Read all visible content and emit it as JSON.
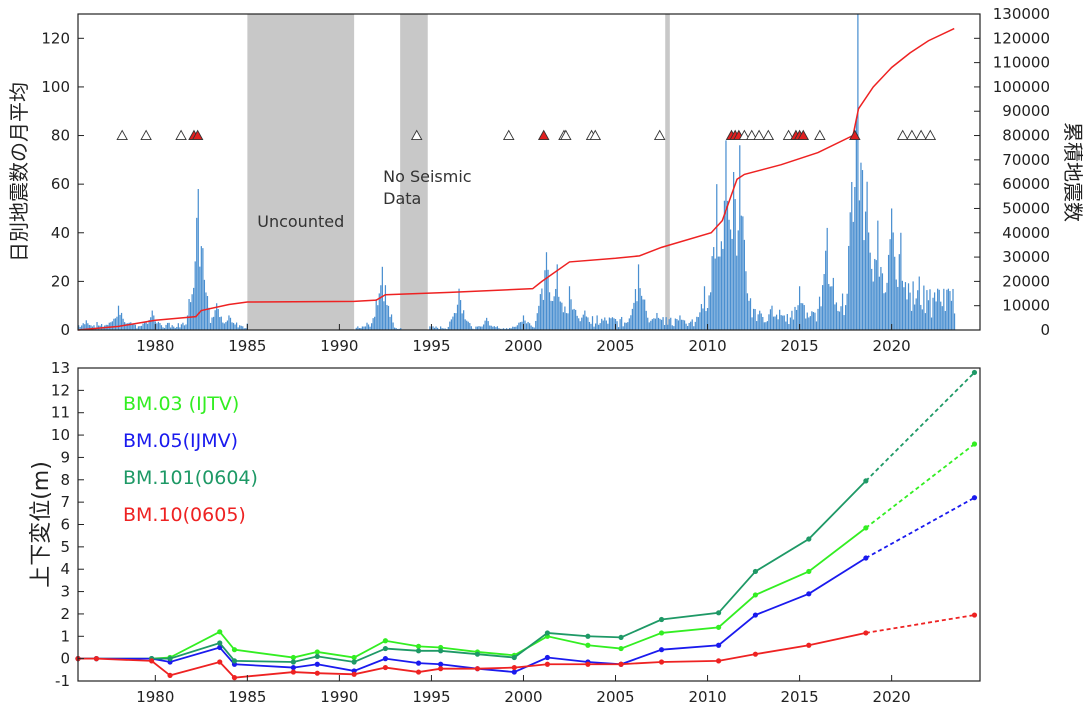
{
  "chart_data": [
    {
      "type": "bar",
      "ylabel": "日別地震数の月平均",
      "ylabel_right": "累積地震数",
      "xlim": [
        1975.8,
        2024.8
      ],
      "ylim": [
        0,
        130
      ],
      "ylim_right": [
        0,
        130000
      ],
      "x_ticks": [
        1980,
        1985,
        1990,
        1995,
        2000,
        2005,
        2010,
        2015,
        2020
      ],
      "y_ticks": [
        0,
        20,
        40,
        60,
        80,
        100,
        120
      ],
      "y_ticks_right": [
        0,
        10000,
        20000,
        30000,
        40000,
        50000,
        60000,
        70000,
        80000,
        90000,
        100000,
        110000,
        120000,
        130000
      ],
      "shaded_periods": [
        {
          "start": 1985.0,
          "end": 1990.8,
          "label": "Uncounted"
        },
        {
          "start": 1993.3,
          "end": 1994.8,
          "label_lines": [
            "No Seismic",
            "Data"
          ]
        },
        {
          "start": 2007.7,
          "end": 2007.95,
          "label_lines": []
        }
      ],
      "monthly_daily_average_peaks": [
        {
          "x": 1976.2,
          "y": 4
        },
        {
          "x": 1977.5,
          "y": 3
        },
        {
          "x": 1978.0,
          "y": 10
        },
        {
          "x": 1979.8,
          "y": 8
        },
        {
          "x": 1981.5,
          "y": 3
        },
        {
          "x": 1982.3,
          "y": 58
        },
        {
          "x": 1983.3,
          "y": 11
        },
        {
          "x": 1984.0,
          "y": 6
        },
        {
          "x": 1991.5,
          "y": 3
        },
        {
          "x": 1992.3,
          "y": 26
        },
        {
          "x": 1996.5,
          "y": 17
        },
        {
          "x": 1998.0,
          "y": 5
        },
        {
          "x": 2000.0,
          "y": 6
        },
        {
          "x": 2001.2,
          "y": 32
        },
        {
          "x": 2001.8,
          "y": 27
        },
        {
          "x": 2002.5,
          "y": 18
        },
        {
          "x": 2003.3,
          "y": 8
        },
        {
          "x": 2006.2,
          "y": 27
        },
        {
          "x": 2007.2,
          "y": 7
        },
        {
          "x": 2008.5,
          "y": 6
        },
        {
          "x": 2009.8,
          "y": 18
        },
        {
          "x": 2010.5,
          "y": 60
        },
        {
          "x": 2011.0,
          "y": 78
        },
        {
          "x": 2011.4,
          "y": 65
        },
        {
          "x": 2011.7,
          "y": 76
        },
        {
          "x": 2012.2,
          "y": 12
        },
        {
          "x": 2013.5,
          "y": 10
        },
        {
          "x": 2015.0,
          "y": 18
        },
        {
          "x": 2016.5,
          "y": 42
        },
        {
          "x": 2017.3,
          "y": 15
        },
        {
          "x": 2018.1,
          "y": 130
        },
        {
          "x": 2018.6,
          "y": 61
        },
        {
          "x": 2019.2,
          "y": 45
        },
        {
          "x": 2020.0,
          "y": 50
        },
        {
          "x": 2020.5,
          "y": 40
        },
        {
          "x": 2021.5,
          "y": 22
        },
        {
          "x": 2022.5,
          "y": 17
        },
        {
          "x": 2023.2,
          "y": 12
        }
      ],
      "cumulative_count": [
        {
          "x": 1975.8,
          "y": 0
        },
        {
          "x": 1978,
          "y": 1500
        },
        {
          "x": 1980,
          "y": 4000
        },
        {
          "x": 1982.2,
          "y": 5500
        },
        {
          "x": 1982.5,
          "y": 8000
        },
        {
          "x": 1984,
          "y": 10500
        },
        {
          "x": 1985,
          "y": 11500
        },
        {
          "x": 1990.8,
          "y": 11800
        },
        {
          "x": 1992.0,
          "y": 12300
        },
        {
          "x": 1992.5,
          "y": 14500
        },
        {
          "x": 1996,
          "y": 15500
        },
        {
          "x": 2000.5,
          "y": 17000
        },
        {
          "x": 2001.0,
          "y": 20000
        },
        {
          "x": 2002.5,
          "y": 28000
        },
        {
          "x": 2005,
          "y": 29500
        },
        {
          "x": 2006.3,
          "y": 30500
        },
        {
          "x": 2007.5,
          "y": 34000
        },
        {
          "x": 2010.2,
          "y": 40000
        },
        {
          "x": 2010.8,
          "y": 45000
        },
        {
          "x": 2011.6,
          "y": 62000
        },
        {
          "x": 2012,
          "y": 64000
        },
        {
          "x": 2014,
          "y": 68000
        },
        {
          "x": 2016,
          "y": 73000
        },
        {
          "x": 2017.9,
          "y": 80000
        },
        {
          "x": 2018.2,
          "y": 91000
        },
        {
          "x": 2019,
          "y": 100000
        },
        {
          "x": 2020,
          "y": 108000
        },
        {
          "x": 2021,
          "y": 114000
        },
        {
          "x": 2022,
          "y": 119000
        },
        {
          "x": 2023.4,
          "y": 124000
        }
      ],
      "eruption_markers": [
        {
          "x": 1978.2,
          "type": "open"
        },
        {
          "x": 1979.5,
          "type": "open"
        },
        {
          "x": 1981.4,
          "type": "open"
        },
        {
          "x": 1982.1,
          "type": "filled"
        },
        {
          "x": 1982.3,
          "type": "filled"
        },
        {
          "x": 1994.2,
          "type": "open"
        },
        {
          "x": 1999.2,
          "type": "open"
        },
        {
          "x": 2001.1,
          "type": "filled"
        },
        {
          "x": 2002.2,
          "type": "open"
        },
        {
          "x": 2002.3,
          "type": "open"
        },
        {
          "x": 2003.7,
          "type": "open"
        },
        {
          "x": 2003.9,
          "type": "open"
        },
        {
          "x": 2007.4,
          "type": "open"
        },
        {
          "x": 2011.3,
          "type": "filled"
        },
        {
          "x": 2011.5,
          "type": "filled"
        },
        {
          "x": 2011.7,
          "type": "filled"
        },
        {
          "x": 2012.0,
          "type": "open"
        },
        {
          "x": 2012.4,
          "type": "open"
        },
        {
          "x": 2012.8,
          "type": "open"
        },
        {
          "x": 2013.3,
          "type": "open"
        },
        {
          "x": 2014.4,
          "type": "open"
        },
        {
          "x": 2014.8,
          "type": "filled"
        },
        {
          "x": 2015.0,
          "type": "filled"
        },
        {
          "x": 2015.2,
          "type": "filled"
        },
        {
          "x": 2016.1,
          "type": "open"
        },
        {
          "x": 2018.0,
          "type": "filled"
        },
        {
          "x": 2020.6,
          "type": "open"
        },
        {
          "x": 2021.1,
          "type": "open"
        },
        {
          "x": 2021.6,
          "type": "open"
        },
        {
          "x": 2022.1,
          "type": "open"
        }
      ],
      "marker_level": 80
    },
    {
      "type": "line",
      "ylabel": "上下変位(m)",
      "xlim": [
        1975.8,
        2024.8
      ],
      "ylim": [
        -1,
        13
      ],
      "x_ticks": [
        1980,
        1985,
        1990,
        1995,
        2000,
        2005,
        2010,
        2015,
        2020
      ],
      "y_ticks": [
        -1,
        0,
        1,
        2,
        3,
        4,
        5,
        6,
        7,
        8,
        9,
        10,
        11,
        12,
        13
      ],
      "series": [
        {
          "name": "BM.03 (IJTV)",
          "color": "#33ee22",
          "x": [
            1975.8,
            1976.8,
            1979.8,
            1980.8,
            1983.5,
            1984.3,
            1987.5,
            1988.8,
            1990.8,
            1992.5,
            1994.3,
            1995.5,
            1997.5,
            1999.5,
            2001.3,
            2003.5,
            2005.3,
            2007.5,
            2010.6,
            2012.6,
            2015.5,
            2018.6
          ],
          "y": [
            0,
            0,
            0,
            0.05,
            1.2,
            0.4,
            0.05,
            0.3,
            0.05,
            0.8,
            0.55,
            0.5,
            0.3,
            0.15,
            1.0,
            0.6,
            0.45,
            1.15,
            1.4,
            2.85,
            3.9,
            5.85
          ],
          "projection": {
            "x": [
              2018.6,
              2024.5
            ],
            "y": [
              5.85,
              9.6
            ]
          }
        },
        {
          "name": "BM.05(IJMV)",
          "color": "#1a1aee",
          "x": [
            1975.8,
            1976.8,
            1979.8,
            1980.8,
            1983.5,
            1984.3,
            1987.5,
            1988.8,
            1990.8,
            1992.5,
            1994.3,
            1995.5,
            1997.5,
            1999.5,
            2001.3,
            2003.5,
            2005.3,
            2007.5,
            2010.6,
            2012.6,
            2015.5,
            2018.6
          ],
          "y": [
            0,
            0,
            0,
            -0.15,
            0.5,
            -0.25,
            -0.4,
            -0.25,
            -0.55,
            0.0,
            -0.2,
            -0.25,
            -0.45,
            -0.6,
            0.05,
            -0.15,
            -0.25,
            0.4,
            0.6,
            1.95,
            2.9,
            4.5
          ],
          "projection": {
            "x": [
              2018.6,
              2024.5
            ],
            "y": [
              4.5,
              7.2
            ]
          }
        },
        {
          "name": "BM.101(0604)",
          "color": "#1e9966",
          "x": [
            1979.8,
            1980.8,
            1983.5,
            1984.3,
            1987.5,
            1988.8,
            1990.8,
            1992.5,
            1994.3,
            1995.5,
            1997.5,
            1999.5,
            2001.3,
            2003.5,
            2005.3,
            2007.5,
            2010.6,
            2012.6,
            2015.5,
            2018.6
          ],
          "y": [
            0,
            0,
            0.7,
            -0.1,
            -0.15,
            0.1,
            -0.15,
            0.45,
            0.35,
            0.35,
            0.2,
            0.05,
            1.15,
            1.0,
            0.95,
            1.75,
            2.05,
            3.9,
            5.35,
            7.95
          ],
          "projection": {
            "x": [
              2018.6,
              2024.5
            ],
            "y": [
              7.95,
              12.8
            ]
          }
        },
        {
          "name": "BM.10(0605)",
          "color": "#ee2222",
          "x": [
            1975.8,
            1976.8,
            1979.8,
            1980.8,
            1983.5,
            1984.3,
            1987.5,
            1988.8,
            1990.8,
            1992.5,
            1994.3,
            1995.5,
            1997.5,
            1999.5,
            2001.3,
            2003.5,
            2005.3,
            2007.5,
            2010.6,
            2012.6,
            2015.5,
            2018.6
          ],
          "y": [
            0,
            0,
            -0.1,
            -0.75,
            -0.15,
            -0.85,
            -0.6,
            -0.65,
            -0.7,
            -0.4,
            -0.6,
            -0.45,
            -0.45,
            -0.4,
            -0.25,
            -0.25,
            -0.25,
            -0.15,
            -0.1,
            0.2,
            0.6,
            1.15
          ],
          "projection": {
            "x": [
              2018.6,
              2024.5
            ],
            "y": [
              1.15,
              1.95
            ]
          }
        }
      ]
    }
  ]
}
